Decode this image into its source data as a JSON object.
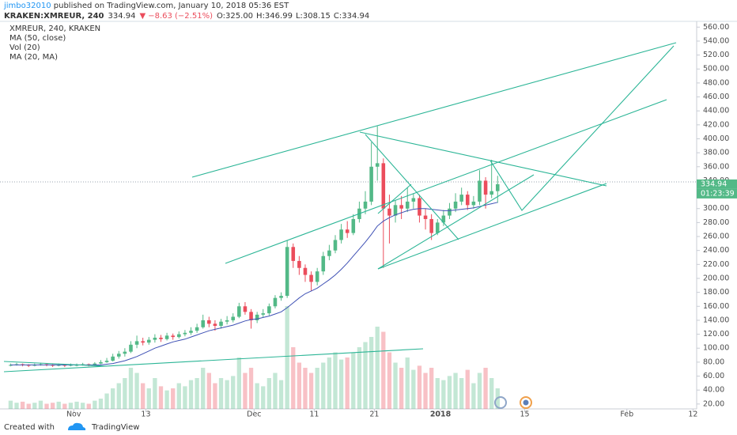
{
  "header": {
    "author": "jimbo32010",
    "published": " published on TradingView.com, January 10, 2018 05:36 EST",
    "symbol": "KRAKEN:XMREUR, 240",
    "last": "334.94",
    "arrow": "▼",
    "change": "−8.63 (−2.51%)",
    "ohlc": [
      "O:325.00",
      "H:346.99",
      "L:308.15",
      "C:334.94"
    ]
  },
  "chart_data": {
    "type": "candlestick",
    "legend": [
      "XMREUR, 240, KRAKEN",
      "MA (50, close)",
      "Vol (20)",
      "MA (20, MA)"
    ],
    "up_color": "#53b987",
    "down_color": "#eb4d5c",
    "ma_color": "#3f51b5",
    "trendline_color": "#2bb596",
    "grid": false,
    "dates": [
      "2017-10-21",
      "2017-10-22",
      "2017-10-23",
      "2017-10-24",
      "2017-10-25",
      "2017-10-26",
      "2017-10-27",
      "2017-10-28",
      "2017-10-29",
      "2017-10-30",
      "2017-10-31",
      "2017-11-01",
      "2017-11-02",
      "2017-11-03",
      "2017-11-04",
      "2017-11-05",
      "2017-11-06",
      "2017-11-07",
      "2017-11-08",
      "2017-11-09",
      "2017-11-10",
      "2017-11-11",
      "2017-11-12",
      "2017-11-13",
      "2017-11-14",
      "2017-11-15",
      "2017-11-16",
      "2017-11-17",
      "2017-11-18",
      "2017-11-19",
      "2017-11-20",
      "2017-11-21",
      "2017-11-22",
      "2017-11-23",
      "2017-11-24",
      "2017-11-25",
      "2017-11-26",
      "2017-11-27",
      "2017-11-28",
      "2017-11-29",
      "2017-11-30",
      "2017-12-01",
      "2017-12-02",
      "2017-12-03",
      "2017-12-04",
      "2017-12-05",
      "2017-12-06",
      "2017-12-07",
      "2017-12-08",
      "2017-12-09",
      "2017-12-10",
      "2017-12-11",
      "2017-12-12",
      "2017-12-13",
      "2017-12-14",
      "2017-12-15",
      "2017-12-16",
      "2017-12-17",
      "2017-12-18",
      "2017-12-19",
      "2017-12-20",
      "2017-12-21",
      "2017-12-22",
      "2017-12-23",
      "2017-12-24",
      "2017-12-25",
      "2017-12-26",
      "2017-12-27",
      "2017-12-28",
      "2017-12-29",
      "2017-12-30",
      "2017-12-31",
      "2018-01-01",
      "2018-01-02",
      "2018-01-03",
      "2018-01-04",
      "2018-01-05",
      "2018-01-06",
      "2018-01-07",
      "2018-01-08",
      "2018-01-09",
      "2018-01-10"
    ],
    "open": [
      76,
      76,
      77,
      76,
      75,
      76,
      77,
      76,
      75,
      76,
      75,
      76,
      76,
      77,
      76,
      78,
      80,
      82,
      88,
      92,
      95,
      105,
      110,
      108,
      112,
      115,
      113,
      118,
      116,
      120,
      122,
      125,
      130,
      140,
      135,
      132,
      138,
      140,
      145,
      160,
      152,
      140,
      148,
      150,
      160,
      172,
      175,
      245,
      225,
      215,
      205,
      195,
      210,
      232,
      240,
      255,
      270,
      265,
      285,
      300,
      310,
      360,
      365,
      300,
      290,
      305,
      300,
      310,
      315,
      290,
      285,
      265,
      280,
      290,
      300,
      310,
      320,
      305,
      310,
      340,
      320,
      325
    ],
    "high": [
      78,
      79,
      78,
      77,
      78,
      79,
      78,
      77,
      78,
      77,
      78,
      78,
      79,
      78,
      80,
      83,
      86,
      92,
      96,
      100,
      110,
      118,
      115,
      116,
      120,
      119,
      122,
      121,
      124,
      126,
      130,
      135,
      148,
      145,
      140,
      142,
      146,
      150,
      165,
      166,
      156,
      152,
      156,
      164,
      176,
      180,
      255,
      250,
      232,
      220,
      210,
      215,
      238,
      248,
      262,
      278,
      282,
      292,
      310,
      325,
      395,
      418,
      372,
      320,
      312,
      318,
      330,
      322,
      320,
      300,
      292,
      285,
      298,
      308,
      322,
      330,
      325,
      318,
      355,
      345,
      370,
      346.99
    ],
    "low": [
      74,
      75,
      74,
      73,
      74,
      75,
      74,
      73,
      74,
      73,
      74,
      74,
      75,
      74,
      75,
      77,
      79,
      81,
      85,
      88,
      93,
      100,
      104,
      105,
      108,
      109,
      111,
      112,
      114,
      117,
      119,
      122,
      128,
      130,
      125,
      128,
      134,
      137,
      143,
      148,
      128,
      136,
      144,
      147,
      157,
      168,
      172,
      215,
      205,
      195,
      182,
      190,
      205,
      226,
      236,
      250,
      258,
      262,
      280,
      292,
      305,
      340,
      215,
      250,
      280,
      285,
      295,
      300,
      280,
      270,
      255,
      262,
      275,
      285,
      295,
      305,
      298,
      300,
      305,
      300,
      315,
      308.15
    ],
    "close": [
      76,
      77,
      76,
      75,
      76,
      77,
      76,
      75,
      76,
      75,
      76,
      76,
      77,
      76,
      78,
      80,
      82,
      88,
      92,
      95,
      105,
      110,
      108,
      112,
      115,
      113,
      118,
      116,
      120,
      122,
      125,
      130,
      140,
      135,
      132,
      138,
      140,
      145,
      160,
      152,
      140,
      148,
      150,
      160,
      172,
      175,
      245,
      225,
      215,
      205,
      195,
      210,
      232,
      240,
      255,
      270,
      265,
      285,
      300,
      310,
      360,
      365,
      300,
      290,
      305,
      300,
      310,
      315,
      290,
      285,
      265,
      280,
      290,
      300,
      310,
      320,
      305,
      310,
      340,
      320,
      325,
      334.94
    ],
    "volume": [
      8,
      6,
      7,
      5,
      6,
      8,
      5,
      6,
      7,
      5,
      6,
      7,
      6,
      5,
      8,
      10,
      15,
      20,
      25,
      30,
      40,
      35,
      25,
      20,
      30,
      22,
      18,
      20,
      25,
      22,
      28,
      30,
      40,
      35,
      25,
      30,
      28,
      32,
      50,
      35,
      40,
      25,
      22,
      30,
      35,
      28,
      100,
      60,
      45,
      40,
      35,
      40,
      45,
      50,
      55,
      48,
      50,
      55,
      60,
      65,
      70,
      80,
      75,
      55,
      45,
      40,
      50,
      38,
      42,
      35,
      40,
      30,
      28,
      32,
      35,
      30,
      38,
      25,
      35,
      40,
      30,
      20
    ],
    "ma": [
      76,
      76,
      76,
      76,
      76,
      76,
      76,
      76,
      76,
      76,
      76,
      76,
      76,
      76,
      76,
      76,
      77,
      78,
      80,
      82,
      85,
      88,
      92,
      96,
      100,
      103,
      106,
      109,
      111,
      113,
      116,
      119,
      122,
      125,
      127,
      129,
      131,
      133,
      136,
      139,
      141,
      142,
      144,
      146,
      149,
      152,
      158,
      165,
      172,
      178,
      182,
      186,
      192,
      198,
      205,
      213,
      222,
      232,
      242,
      252,
      263,
      275,
      282,
      287,
      291,
      294,
      297,
      299,
      300,
      300,
      299,
      298,
      297,
      297,
      298,
      299,
      300,
      301,
      303,
      305,
      307,
      309
    ],
    "xlim": [
      "2017-10-20",
      "2018-02-13"
    ],
    "xticks": [
      {
        "value": "2017-11-01",
        "label": "Nov"
      },
      {
        "value": "2017-11-13",
        "label": "13"
      },
      {
        "value": "2017-12-01",
        "label": "Dec"
      },
      {
        "value": "2017-12-11",
        "label": "11"
      },
      {
        "value": "2017-12-21",
        "label": "21"
      },
      {
        "value": "2018-01-01",
        "label": "2018"
      },
      {
        "value": "2018-01-15",
        "label": "15"
      },
      {
        "value": "2018-02-01",
        "label": "Feb"
      },
      {
        "value": "2018-02-12",
        "label": "12"
      }
    ],
    "ylim": [
      13,
      566
    ],
    "yticks": [
      {
        "value": 20,
        "label": "20.00"
      },
      {
        "value": 40,
        "label": "40.00"
      },
      {
        "value": 60,
        "label": "60.00"
      },
      {
        "value": 80,
        "label": "80.00"
      },
      {
        "value": 100,
        "label": "100.00"
      },
      {
        "value": 120,
        "label": "120.00"
      },
      {
        "value": 140,
        "label": "140.00"
      },
      {
        "value": 160,
        "label": "160.00"
      },
      {
        "value": 180,
        "label": "180.00"
      },
      {
        "value": 200,
        "label": "200.00"
      },
      {
        "value": 220,
        "label": "220.00"
      },
      {
        "value": 240,
        "label": "240.00"
      },
      {
        "value": 260,
        "label": "260.00"
      },
      {
        "value": 280,
        "label": "280.00"
      },
      {
        "value": 300,
        "label": "300.00"
      },
      {
        "value": 320,
        "label": "320.00"
      },
      {
        "value": 340,
        "label": "340.00"
      },
      {
        "value": 360,
        "label": "360.00"
      },
      {
        "value": 380,
        "label": "380.00"
      },
      {
        "value": 400,
        "label": "400.00"
      },
      {
        "value": 420,
        "label": "420.00"
      },
      {
        "value": 440,
        "label": "440.00"
      },
      {
        "value": 460,
        "label": "460.00"
      },
      {
        "value": 480,
        "label": "480.00"
      },
      {
        "value": 500,
        "label": "500.00"
      },
      {
        "value": 520,
        "label": "520.00"
      },
      {
        "value": 540,
        "label": "540.00"
      },
      {
        "value": 560,
        "label": "560.00"
      }
    ],
    "last_price": 334.94,
    "price_label": "334.94",
    "countdown": "01:23:39"
  },
  "footer": {
    "created": "Created with",
    "brand": "TradingView"
  }
}
